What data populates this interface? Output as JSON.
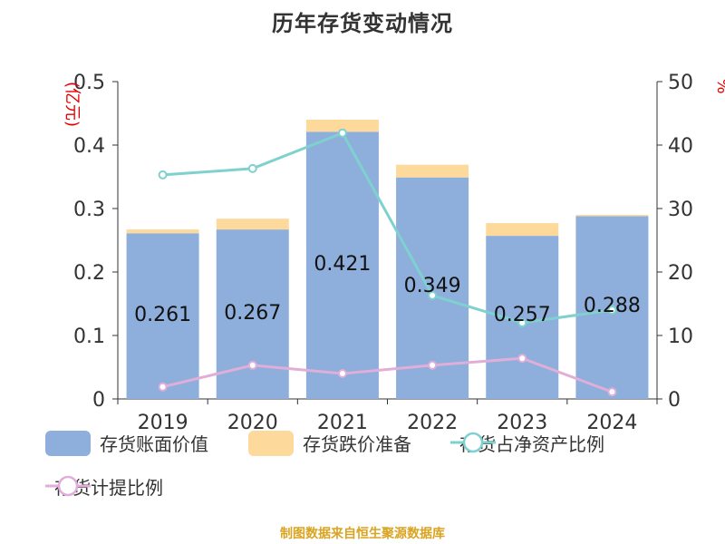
{
  "title": "历年存货变动情况",
  "footer": "制图数据来自恒生聚源数据库",
  "colors": {
    "book_value": "#8eaedb",
    "reserve": "#fdd99b",
    "net_asset_ratio": "#7fd1cf",
    "provision_ratio": "#e0aed8",
    "axis_label_red": "#e60000",
    "footer": "#d9a421"
  },
  "legend": [
    {
      "name": "存货账面价值",
      "type": "bar",
      "color": "#8eaedb"
    },
    {
      "name": "存货跌价准备",
      "type": "bar",
      "color": "#fdd99b"
    },
    {
      "name": "存货占净资产比例",
      "type": "line",
      "color": "#7fd1cf"
    },
    {
      "name": "存货计提比例",
      "type": "line",
      "color": "#e0aed8"
    }
  ],
  "chart_data": {
    "type": "bar",
    "title": "历年存货变动情况",
    "categories": [
      "2019",
      "2020",
      "2021",
      "2022",
      "2023",
      "2024"
    ],
    "ylabel": "(亿元)",
    "ylabel_right": "%",
    "ylim": [
      0,
      0.5
    ],
    "yticks": [
      "0",
      "0.1",
      "0.2",
      "0.3",
      "0.4",
      "0.5"
    ],
    "ylim_right": [
      0,
      50
    ],
    "yticks_right": [
      "0",
      "10",
      "20",
      "30",
      "40",
      "50"
    ],
    "grid": false,
    "legend_position": "bottom",
    "series": [
      {
        "name": "存货账面价值",
        "type": "bar",
        "stack": "inventory",
        "axis": "left",
        "values": [
          0.261,
          0.267,
          0.421,
          0.349,
          0.257,
          0.288
        ],
        "labels": [
          "0.261",
          "0.267",
          "0.421",
          "0.349",
          "0.257",
          "0.288"
        ]
      },
      {
        "name": "存货跌价准备",
        "type": "bar",
        "stack": "inventory",
        "axis": "left",
        "values": [
          0.006,
          0.017,
          0.019,
          0.02,
          0.02,
          0.002
        ]
      },
      {
        "name": "存货占净资产比例",
        "type": "line",
        "axis": "right",
        "values": [
          35.3,
          36.3,
          41.9,
          16.3,
          12.0,
          14.0
        ]
      },
      {
        "name": "存货计提比例",
        "type": "line",
        "axis": "right",
        "values": [
          1.9,
          5.3,
          4.0,
          5.3,
          6.4,
          1.1
        ]
      }
    ]
  }
}
